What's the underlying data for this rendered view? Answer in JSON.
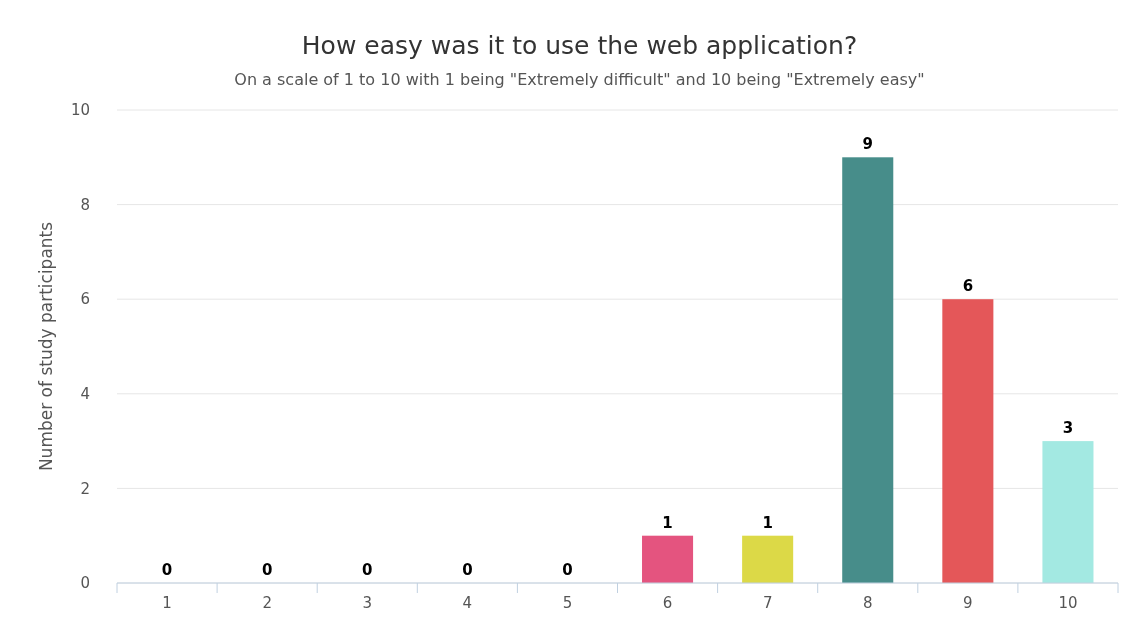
{
  "chart_data": {
    "type": "bar",
    "title": "How easy was it to use the web application?",
    "subtitle": "On a scale of 1 to 10 with 1 being \"Extremely difficult\" and 10 being \"Extremely easy\"",
    "ylabel": "Number of study participants",
    "categories": [
      "1",
      "2",
      "3",
      "4",
      "5",
      "6",
      "7",
      "8",
      "9",
      "10"
    ],
    "values": [
      0,
      0,
      0,
      0,
      0,
      1,
      1,
      9,
      6,
      3
    ],
    "colors": [
      null,
      null,
      null,
      null,
      null,
      "#e4547f",
      "#dcd947",
      "#478d8a",
      "#e45759",
      "#a3e9e2"
    ],
    "ylim": [
      0,
      10
    ],
    "yticks": [
      0,
      2,
      4,
      6,
      8,
      10
    ],
    "grid": "y",
    "data_labels": true
  }
}
